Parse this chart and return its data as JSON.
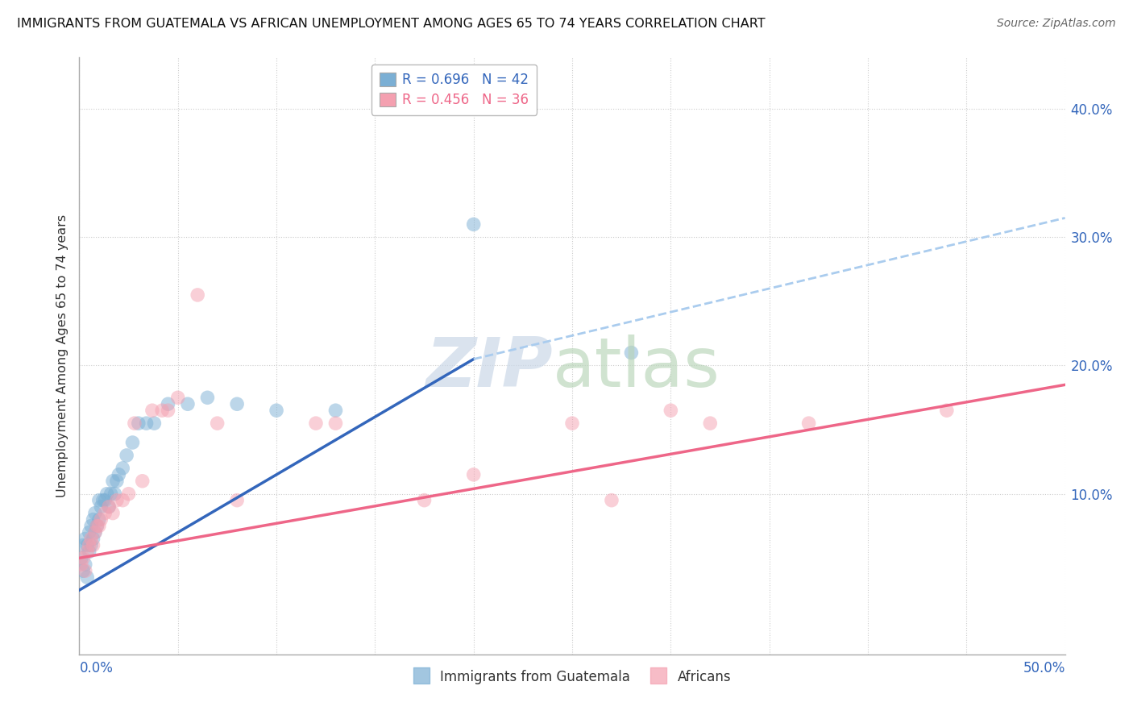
{
  "title": "IMMIGRANTS FROM GUATEMALA VS AFRICAN UNEMPLOYMENT AMONG AGES 65 TO 74 YEARS CORRELATION CHART",
  "source": "Source: ZipAtlas.com",
  "ylabel": "Unemployment Among Ages 65 to 74 years",
  "xlim": [
    0.0,
    0.5
  ],
  "ylim": [
    -0.025,
    0.44
  ],
  "legend_blue_label": "R = 0.696   N = 42",
  "legend_pink_label": "R = 0.456   N = 36",
  "blue_color": "#7BAFD4",
  "pink_color": "#F4A0B0",
  "blue_line_color": "#3366BB",
  "pink_line_color": "#EE6688",
  "blue_dash_color": "#AACCEE",
  "watermark_zip": "ZIP",
  "watermark_atlas": "atlas",
  "blue_line_x0": 0.0,
  "blue_line_y0": 0.025,
  "blue_line_x1": 0.2,
  "blue_line_y1": 0.205,
  "pink_line_x0": 0.0,
  "pink_line_y0": 0.05,
  "pink_line_x1": 0.5,
  "pink_line_y1": 0.185,
  "dash_line_x0": 0.2,
  "dash_line_y0": 0.205,
  "dash_line_x1": 0.5,
  "dash_line_y1": 0.315,
  "blue_scatter_x": [
    0.001,
    0.002,
    0.002,
    0.003,
    0.003,
    0.004,
    0.004,
    0.005,
    0.005,
    0.006,
    0.006,
    0.007,
    0.007,
    0.008,
    0.008,
    0.009,
    0.01,
    0.01,
    0.011,
    0.012,
    0.013,
    0.014,
    0.015,
    0.016,
    0.017,
    0.018,
    0.019,
    0.02,
    0.022,
    0.024,
    0.027,
    0.03,
    0.034,
    0.038,
    0.045,
    0.055,
    0.065,
    0.08,
    0.1,
    0.13,
    0.2,
    0.28
  ],
  "blue_scatter_y": [
    0.05,
    0.04,
    0.06,
    0.045,
    0.065,
    0.035,
    0.06,
    0.055,
    0.07,
    0.06,
    0.075,
    0.065,
    0.08,
    0.07,
    0.085,
    0.075,
    0.08,
    0.095,
    0.09,
    0.095,
    0.095,
    0.1,
    0.09,
    0.1,
    0.11,
    0.1,
    0.11,
    0.115,
    0.12,
    0.13,
    0.14,
    0.155,
    0.155,
    0.155,
    0.17,
    0.17,
    0.175,
    0.17,
    0.165,
    0.165,
    0.31,
    0.21
  ],
  "pink_scatter_x": [
    0.001,
    0.002,
    0.003,
    0.004,
    0.005,
    0.006,
    0.007,
    0.008,
    0.009,
    0.01,
    0.011,
    0.013,
    0.015,
    0.017,
    0.019,
    0.022,
    0.025,
    0.028,
    0.032,
    0.037,
    0.042,
    0.05,
    0.06,
    0.12,
    0.175,
    0.27,
    0.3,
    0.32,
    0.37,
    0.44,
    0.25,
    0.2,
    0.045,
    0.13,
    0.08,
    0.07
  ],
  "pink_scatter_y": [
    0.045,
    0.05,
    0.04,
    0.055,
    0.06,
    0.065,
    0.06,
    0.07,
    0.075,
    0.075,
    0.08,
    0.085,
    0.09,
    0.085,
    0.095,
    0.095,
    0.1,
    0.155,
    0.11,
    0.165,
    0.165,
    0.175,
    0.255,
    0.155,
    0.095,
    0.095,
    0.165,
    0.155,
    0.155,
    0.165,
    0.155,
    0.115,
    0.165,
    0.155,
    0.095,
    0.155
  ]
}
